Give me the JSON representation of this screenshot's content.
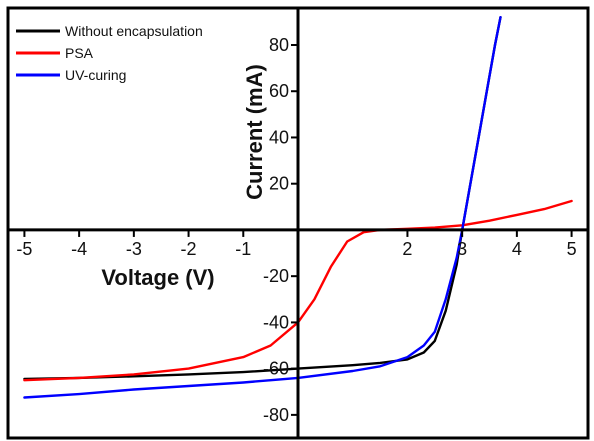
{
  "chart_data": {
    "type": "line",
    "xlabel": "Voltage (V)",
    "ylabel": "Current (mA)",
    "xlim": [
      -5.3,
      5.3
    ],
    "ylim": [
      -90,
      96
    ],
    "x_ticks": [
      -5,
      -4,
      -3,
      -2,
      -1,
      2,
      3,
      4,
      5
    ],
    "y_ticks": [
      80,
      60,
      40,
      20,
      -20,
      -40,
      -60,
      -80
    ],
    "x_tick_labels": [
      "-5",
      "-4",
      "-3",
      "-2",
      "-1",
      "2",
      "3",
      "4",
      "5"
    ],
    "y_tick_labels": [
      "80",
      "60",
      "40",
      "20",
      "-20",
      "-40",
      "-60",
      "-80"
    ],
    "legend_position": "top-left",
    "series": [
      {
        "name": "Without encapsulation",
        "color": "#000000",
        "points": [
          [
            -5.0,
            -64.5
          ],
          [
            -4.0,
            -64.0
          ],
          [
            -3.0,
            -63.3
          ],
          [
            -2.0,
            -62.5
          ],
          [
            -1.0,
            -61.5
          ],
          [
            0.0,
            -60.0
          ],
          [
            1.0,
            -58.5
          ],
          [
            1.5,
            -57.5
          ],
          [
            2.0,
            -56.0
          ],
          [
            2.3,
            -53.0
          ],
          [
            2.5,
            -48.0
          ],
          [
            2.7,
            -35.0
          ],
          [
            2.9,
            -15.0
          ],
          [
            3.0,
            0.0
          ],
          [
            3.15,
            20.0
          ],
          [
            3.3,
            40.0
          ],
          [
            3.45,
            60.0
          ],
          [
            3.6,
            80.0
          ],
          [
            3.7,
            92.0
          ]
        ]
      },
      {
        "name": "PSA",
        "color": "#ff0000",
        "points": [
          [
            -5.0,
            -65.0
          ],
          [
            -4.0,
            -64.0
          ],
          [
            -3.0,
            -62.5
          ],
          [
            -2.0,
            -60.0
          ],
          [
            -1.0,
            -55.0
          ],
          [
            -0.5,
            -50.0
          ],
          [
            0.0,
            -40.0
          ],
          [
            0.3,
            -30.0
          ],
          [
            0.6,
            -16.0
          ],
          [
            0.9,
            -5.0
          ],
          [
            1.2,
            -1.0
          ],
          [
            1.5,
            0.0
          ],
          [
            2.0,
            0.5
          ],
          [
            2.5,
            1.0
          ],
          [
            3.0,
            2.0
          ],
          [
            3.5,
            4.0
          ],
          [
            4.0,
            6.5
          ],
          [
            4.5,
            9.0
          ],
          [
            5.0,
            12.5
          ]
        ]
      },
      {
        "name": "UV-curing",
        "color": "#0000ff",
        "points": [
          [
            -5.0,
            -72.5
          ],
          [
            -4.0,
            -71.0
          ],
          [
            -3.0,
            -69.0
          ],
          [
            -2.0,
            -67.5
          ],
          [
            -1.0,
            -66.0
          ],
          [
            0.0,
            -64.0
          ],
          [
            1.0,
            -61.0
          ],
          [
            1.5,
            -59.0
          ],
          [
            2.0,
            -55.0
          ],
          [
            2.3,
            -50.0
          ],
          [
            2.5,
            -44.0
          ],
          [
            2.7,
            -30.0
          ],
          [
            2.9,
            -12.0
          ],
          [
            3.0,
            0.0
          ],
          [
            3.15,
            20.0
          ],
          [
            3.3,
            40.0
          ],
          [
            3.45,
            60.0
          ],
          [
            3.6,
            80.0
          ],
          [
            3.7,
            92.0
          ]
        ]
      }
    ]
  }
}
